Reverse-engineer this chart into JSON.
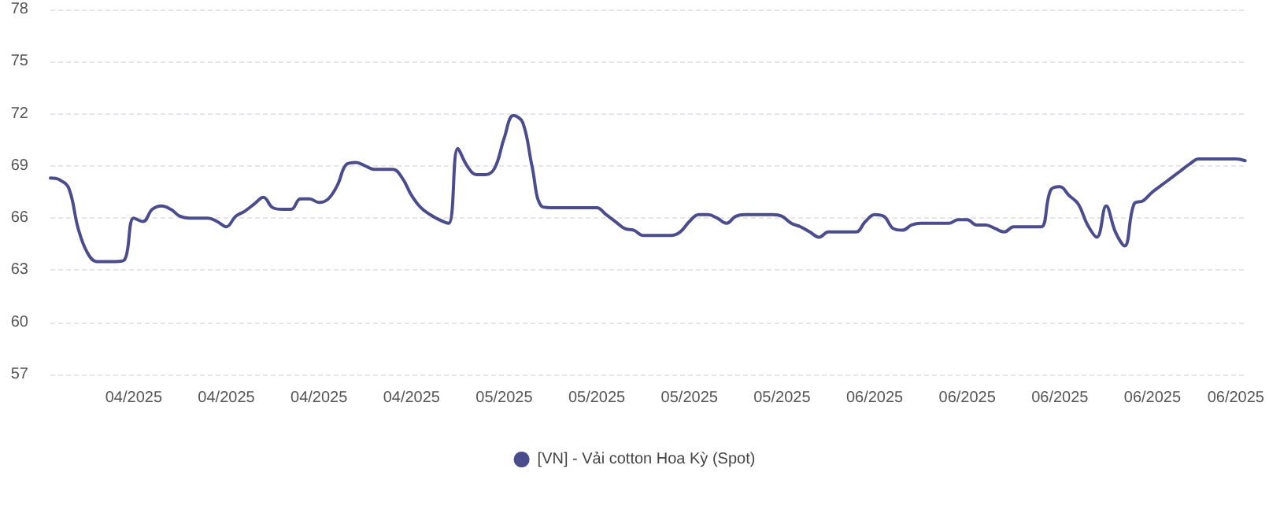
{
  "chart_data": {
    "type": "line",
    "categories": [
      null,
      null,
      null,
      null,
      null,
      null,
      null,
      null,
      null,
      "04/2025",
      null,
      null,
      null,
      null,
      null,
      null,
      null,
      null,
      null,
      "04/2025",
      null,
      null,
      null,
      null,
      null,
      null,
      null,
      null,
      null,
      "04/2025",
      null,
      null,
      null,
      null,
      null,
      null,
      null,
      null,
      null,
      "04/2025",
      null,
      null,
      null,
      null,
      null,
      null,
      null,
      null,
      null,
      "05/2025",
      null,
      null,
      null,
      null,
      null,
      null,
      null,
      null,
      null,
      "05/2025",
      null,
      null,
      null,
      null,
      null,
      null,
      null,
      null,
      null,
      "05/2025",
      null,
      null,
      null,
      null,
      null,
      null,
      null,
      null,
      null,
      "05/2025",
      null,
      null,
      null,
      null,
      null,
      null,
      null,
      null,
      null,
      "06/2025",
      null,
      null,
      null,
      null,
      null,
      null,
      null,
      null,
      null,
      "06/2025",
      null,
      null,
      null,
      null,
      null,
      null,
      null,
      null,
      null,
      "06/2025",
      null,
      null,
      null,
      null,
      null,
      null,
      null,
      null,
      null,
      "06/2025",
      null,
      null,
      null,
      null,
      null,
      null,
      null,
      null,
      "06/2025",
      null
    ],
    "series": [
      {
        "name": "[VN] - Vải cotton Hoa Kỳ (Spot)",
        "color": "#4b4c8c",
        "values": [
          68.3,
          68.2,
          67.7,
          65.4,
          64.0,
          63.5,
          63.5,
          63.5,
          63.6,
          66.0,
          65.8,
          66.5,
          66.7,
          66.5,
          66.1,
          66.0,
          66.0,
          66.0,
          65.8,
          65.5,
          66.1,
          66.4,
          66.8,
          67.2,
          66.6,
          66.5,
          66.5,
          67.1,
          67.1,
          66.9,
          67.1,
          67.9,
          69.1,
          69.2,
          69.0,
          68.8,
          68.8,
          68.8,
          68.3,
          67.3,
          66.6,
          66.2,
          65.9,
          65.7,
          70.0,
          69.0,
          68.5,
          68.5,
          68.9,
          70.6,
          71.9,
          71.5,
          69.0,
          66.7,
          66.6,
          66.6,
          66.6,
          66.6,
          66.6,
          66.6,
          66.2,
          65.8,
          65.4,
          65.3,
          65.0,
          65.0,
          65.0,
          65.0,
          65.2,
          65.8,
          66.2,
          66.2,
          66.0,
          65.7,
          66.1,
          66.2,
          66.2,
          66.2,
          66.2,
          66.1,
          65.7,
          65.5,
          65.2,
          64.9,
          65.2,
          65.2,
          65.2,
          65.2,
          65.8,
          66.2,
          66.1,
          65.4,
          65.3,
          65.6,
          65.7,
          65.7,
          65.7,
          65.7,
          65.9,
          65.9,
          65.6,
          65.6,
          65.4,
          65.2,
          65.5,
          65.5,
          65.5,
          65.5,
          67.6,
          67.8,
          67.3,
          66.8,
          65.6,
          64.9,
          66.7,
          65.2,
          64.4,
          66.8,
          67.0,
          67.5,
          67.9,
          68.3,
          68.7,
          69.1,
          69.4,
          69.4,
          69.4,
          69.4,
          69.4,
          69.3
        ]
      }
    ],
    "ylim": [
      57,
      78
    ],
    "yticks": [
      57,
      60,
      63,
      66,
      69,
      72,
      75,
      78
    ],
    "grid": "y",
    "legend": "bottom",
    "marker": "none",
    "line_style": "solid"
  }
}
